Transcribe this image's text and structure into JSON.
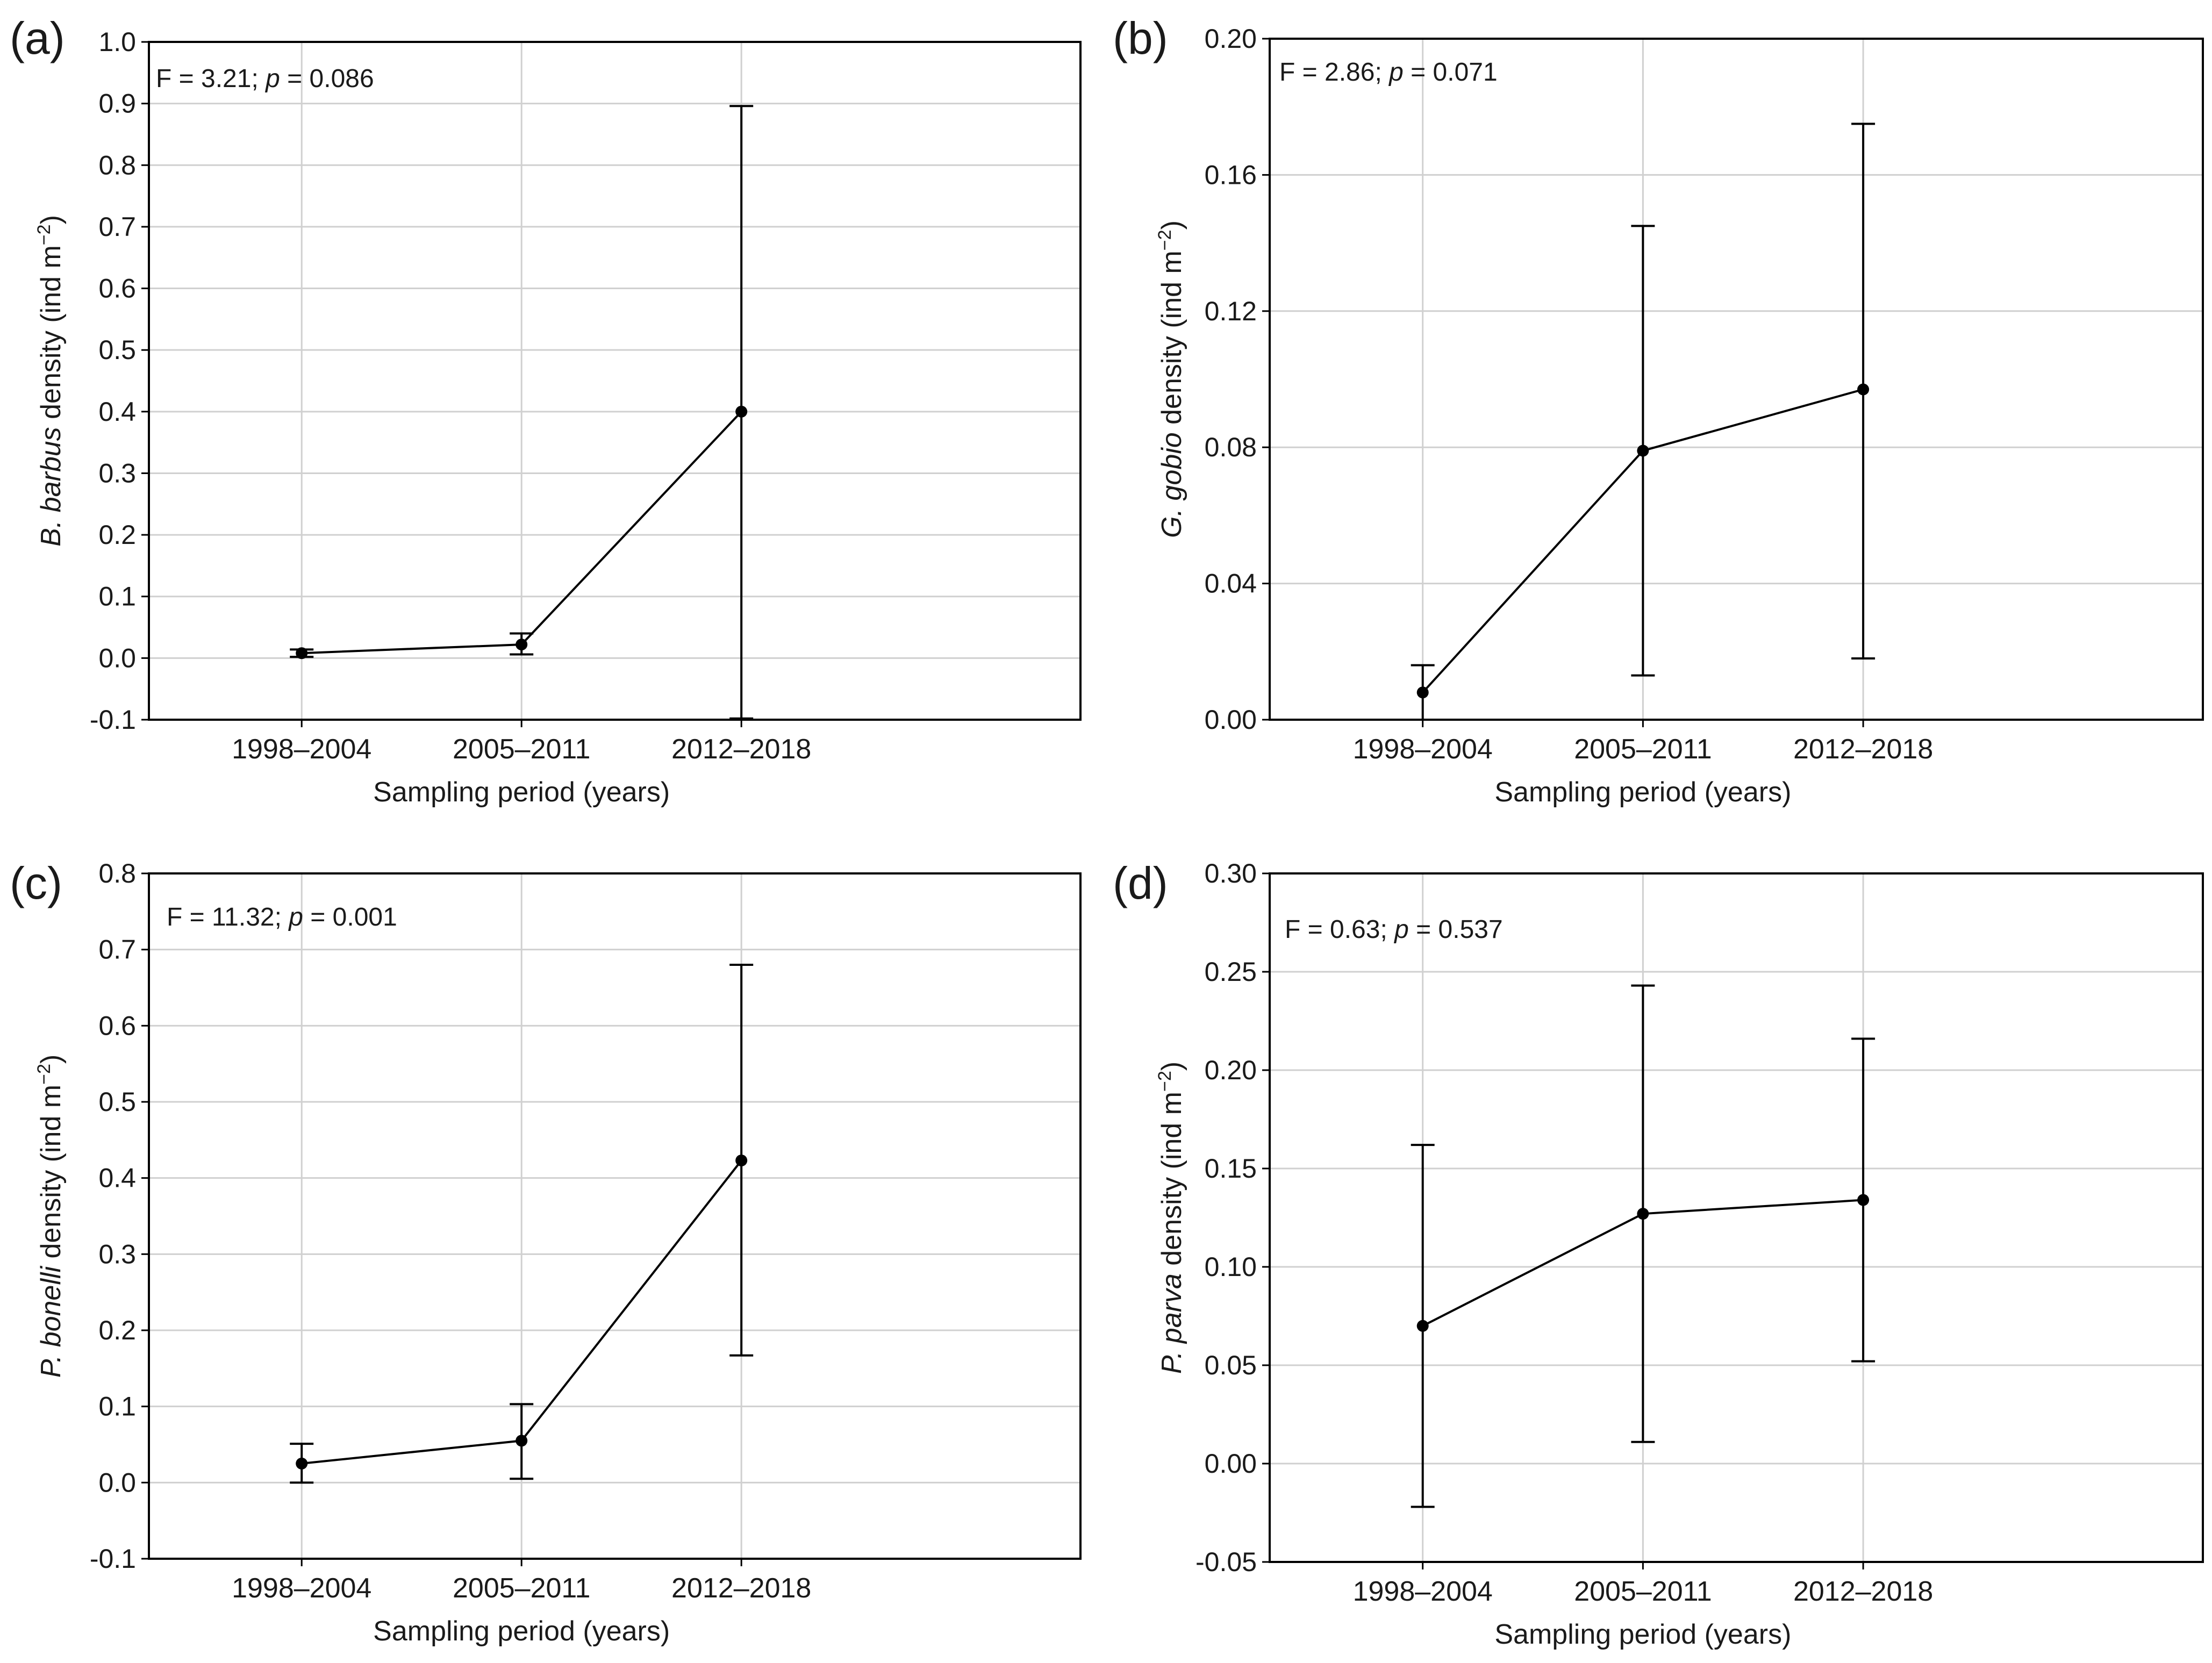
{
  "figure": {
    "x_categories": [
      "1998–2004",
      "2005–2011",
      "2012–2018"
    ],
    "xlabel": "Sampling period (years)",
    "density_unit": " density (ind m",
    "superscript": "−2",
    "close_paren": ")",
    "stat_sep": "; ",
    "p_symbol": "p",
    "p_eq": " = "
  },
  "chart_data": [
    {
      "panel": "(a)",
      "type": "line",
      "species": "B. barbus",
      "stat_f": "F = 3.21",
      "stat_p": "0.086",
      "categories": [
        "1998–2004",
        "2005–2011",
        "2012–2018"
      ],
      "values": [
        0.008,
        0.022,
        0.4
      ],
      "err_low": [
        0.002,
        0.006,
        -0.098
      ],
      "err_high": [
        0.014,
        0.04,
        0.896
      ],
      "ylim": [
        -0.1,
        1.0
      ],
      "yticks": [
        -0.1,
        0.0,
        0.1,
        0.2,
        0.3,
        0.4,
        0.5,
        0.6,
        0.7,
        0.8,
        0.9,
        1.0
      ],
      "ytick_labels": [
        "-0.1",
        "0.0",
        "0.1",
        "0.2",
        "0.3",
        "0.4",
        "0.5",
        "0.6",
        "0.7",
        "0.8",
        "0.9",
        "1.0"
      ],
      "xlabel": "Sampling period (years)"
    },
    {
      "panel": "(b)",
      "type": "line",
      "species": "G. gobio",
      "stat_f": "F = 2.86",
      "stat_p": "0.071",
      "categories": [
        "1998–2004",
        "2005–2011",
        "2012–2018"
      ],
      "values": [
        0.008,
        0.079,
        0.097
      ],
      "err_low": [
        0.0,
        0.013,
        0.018
      ],
      "err_high": [
        0.016,
        0.145,
        0.175
      ],
      "ylim": [
        0.0,
        0.2
      ],
      "yticks": [
        0.0,
        0.04,
        0.08,
        0.12,
        0.16,
        0.2
      ],
      "ytick_labels": [
        "0.00",
        "0.04",
        "0.08",
        "0.12",
        "0.16",
        "0.20"
      ],
      "xlabel": "Sampling period (years)"
    },
    {
      "panel": "(c)",
      "type": "line",
      "species": "P. bonelli",
      "stat_f": "F = 11.32",
      "stat_p": "0.001",
      "categories": [
        "1998–2004",
        "2005–2011",
        "2012–2018"
      ],
      "values": [
        0.025,
        0.055,
        0.423
      ],
      "err_low": [
        0.0,
        0.005,
        0.167
      ],
      "err_high": [
        0.051,
        0.103,
        0.68
      ],
      "ylim": [
        -0.1,
        0.8
      ],
      "yticks": [
        -0.1,
        0.0,
        0.1,
        0.2,
        0.3,
        0.4,
        0.5,
        0.6,
        0.7,
        0.8
      ],
      "ytick_labels": [
        "-0.1",
        "0.0",
        "0.1",
        "0.2",
        "0.3",
        "0.4",
        "0.5",
        "0.6",
        "0.7",
        "0.8"
      ],
      "xlabel": "Sampling period (years)"
    },
    {
      "panel": "(d)",
      "type": "line",
      "species": "P. parva",
      "stat_f": "F = 0.63",
      "stat_p": "0.537",
      "categories": [
        "1998–2004",
        "2005–2011",
        "2012–2018"
      ],
      "values": [
        0.07,
        0.127,
        0.134
      ],
      "err_low": [
        -0.022,
        0.011,
        0.052
      ],
      "err_high": [
        0.162,
        0.243,
        0.216
      ],
      "ylim": [
        -0.05,
        0.3
      ],
      "yticks": [
        -0.05,
        0.0,
        0.05,
        0.1,
        0.15,
        0.2,
        0.25,
        0.3
      ],
      "ytick_labels": [
        "-0.05",
        "0.00",
        "0.05",
        "0.10",
        "0.15",
        "0.20",
        "0.25",
        "0.30"
      ],
      "xlabel": "Sampling period (years)"
    }
  ]
}
